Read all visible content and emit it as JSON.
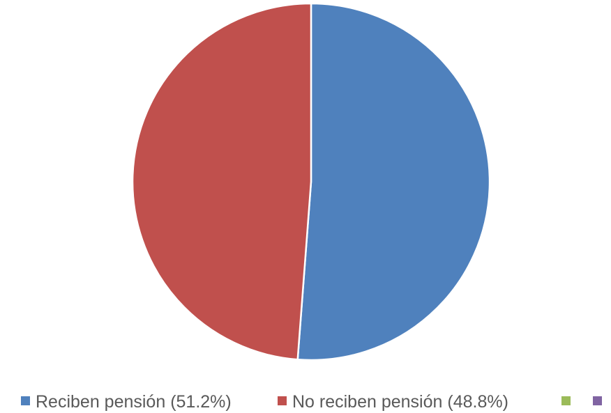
{
  "chart_data": {
    "type": "pie",
    "title": "",
    "slices": [
      {
        "label": "Reciben pensión (51.2%)",
        "value": 51.2,
        "color": "#4F81BD"
      },
      {
        "label": "No reciben pensión (48.8%)",
        "value": 48.8,
        "color": "#C0504D"
      },
      {
        "label": "",
        "value": 0,
        "color": "#9BBB59"
      },
      {
        "label": "",
        "value": 0,
        "color": "#8064A2"
      }
    ],
    "start_angle_deg": 0,
    "direction": "clockwise",
    "legend_position": "bottom"
  }
}
